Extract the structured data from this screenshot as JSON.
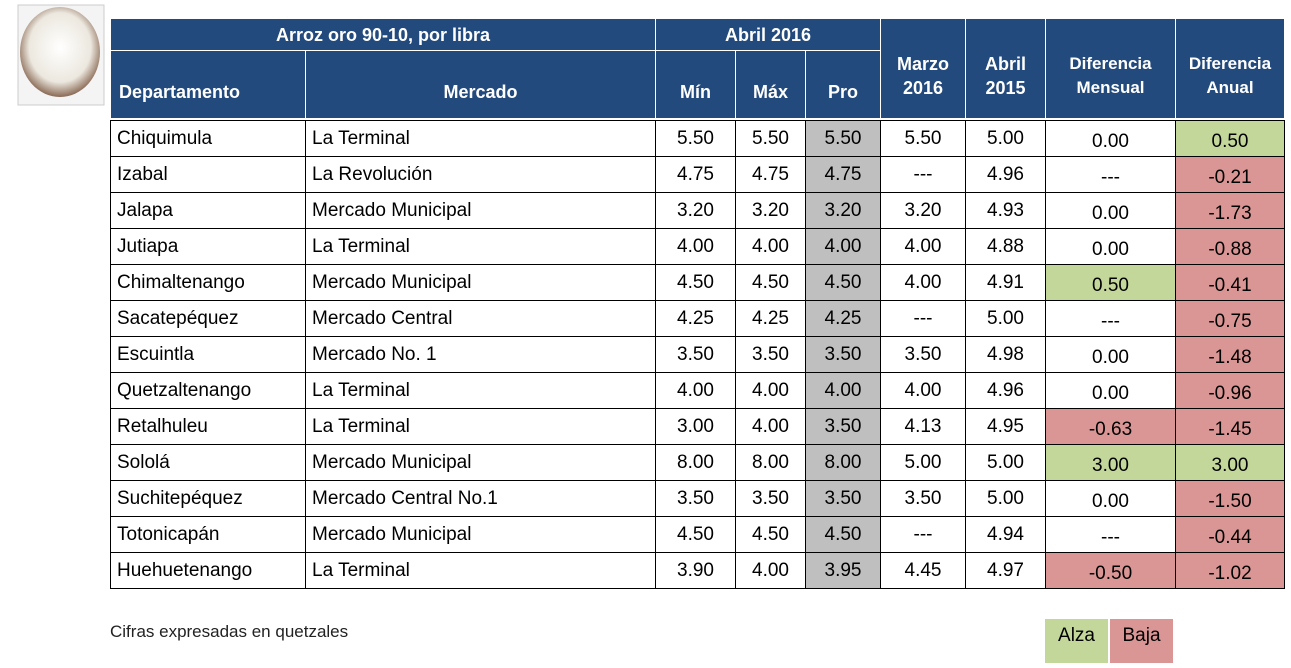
{
  "header": {
    "product": "Arroz oro 90-10, por libra",
    "period": "Abril 2016",
    "columns": [
      "Departamento",
      "Mercado",
      "Mín",
      "Máx",
      "Pro",
      "Marzo 2016",
      "Abril 2015",
      "Diferencia Mensual",
      "Diferencia Anual"
    ]
  },
  "rows": [
    [
      "Chiquimula",
      "La Terminal",
      "5.50",
      "5.50",
      "5.50",
      "5.50",
      "5.00",
      "0.00",
      "0.50"
    ],
    [
      "Izabal",
      "La Revolución",
      "4.75",
      "4.75",
      "4.75",
      "---",
      "4.96",
      "---",
      "-0.21"
    ],
    [
      "Jalapa",
      "Mercado Municipal",
      "3.20",
      "3.20",
      "3.20",
      "3.20",
      "4.93",
      "0.00",
      "-1.73"
    ],
    [
      "Jutiapa",
      "La Terminal",
      "4.00",
      "4.00",
      "4.00",
      "4.00",
      "4.88",
      "0.00",
      "-0.88"
    ],
    [
      "Chimaltenango",
      "Mercado Municipal",
      "4.50",
      "4.50",
      "4.50",
      "4.00",
      "4.91",
      "0.50",
      "-0.41"
    ],
    [
      "Sacatepéquez",
      "Mercado Central",
      "4.25",
      "4.25",
      "4.25",
      "---",
      "5.00",
      "---",
      "-0.75"
    ],
    [
      "Escuintla",
      "Mercado No. 1",
      "3.50",
      "3.50",
      "3.50",
      "3.50",
      "4.98",
      "0.00",
      "-1.48"
    ],
    [
      "Quetzaltenango",
      "La Terminal",
      "4.00",
      "4.00",
      "4.00",
      "4.00",
      "4.96",
      "0.00",
      "-0.96"
    ],
    [
      "Retalhuleu",
      "La Terminal",
      "3.00",
      "4.00",
      "3.50",
      "4.13",
      "4.95",
      "-0.63",
      "-1.45"
    ],
    [
      "Sololá",
      "Mercado Municipal",
      "8.00",
      "8.00",
      "8.00",
      "5.00",
      "5.00",
      "3.00",
      "3.00"
    ],
    [
      "Suchitepéquez",
      "Mercado Central No.1",
      "3.50",
      "3.50",
      "3.50",
      "3.50",
      "5.00",
      "0.00",
      "-1.50"
    ],
    [
      "Totonicapán",
      "Mercado Municipal",
      "4.50",
      "4.50",
      "4.50",
      "---",
      "4.94",
      "---",
      "-0.44"
    ],
    [
      "Huehuetenango",
      "La Terminal",
      "3.90",
      "4.00",
      "3.95",
      "4.45",
      "4.97",
      "-0.50",
      "-1.02"
    ]
  ],
  "footer": {
    "note": "Cifras expresadas en quetzales",
    "legend": [
      "Alza",
      "Baja"
    ]
  },
  "colors": {
    "header": "#234a7c",
    "pro": "#bfbfbf",
    "alza": "#c4d79b",
    "baja": "#da9694"
  }
}
